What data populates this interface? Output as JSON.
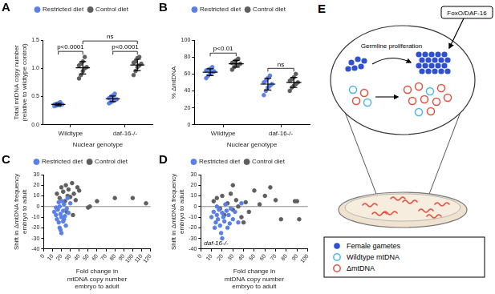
{
  "chart_data": [
    {
      "panel_label": "A",
      "type": "dot",
      "categories": [
        "Wildtype",
        "daf-16-/-"
      ],
      "xlabel": "Nuclear genotype",
      "ylabel": [
        "Total mtDNA copy number",
        "(relative to wildtype control)"
      ],
      "ylim": [
        0,
        1.5
      ],
      "yticks": [
        {
          "value": 0,
          "label": "0.0"
        },
        0.5,
        {
          "value": 1,
          "label": "1.0"
        },
        1.5
      ],
      "legend": "upper left",
      "grid": false,
      "marker": "circle",
      "series": [
        {
          "name": "Restricted diet",
          "color": "#5a7fe8",
          "values": [
            [
              0.33,
              0.34,
              0.35,
              0.35,
              0.36,
              0.36,
              0.37,
              0.38,
              0.4
            ],
            [
              0.38,
              0.4,
              0.42,
              0.45,
              0.45,
              0.47,
              0.5,
              0.52,
              0.55
            ]
          ],
          "mean": [
            0.36,
            0.46
          ],
          "sd": [
            0.02,
            0.05
          ]
        },
        {
          "name": "Control diet",
          "color": "#5f5f5f",
          "values": [
            [
              0.82,
              0.88,
              0.95,
              1.0,
              1.02,
              1.05,
              1.08,
              1.12,
              1.2
            ],
            [
              0.88,
              0.95,
              1.02,
              1.05,
              1.08,
              1.1,
              1.12,
              1.18,
              1.2
            ]
          ],
          "mean": [
            1.01,
            1.06
          ],
          "sd": [
            0.11,
            0.1
          ]
        }
      ],
      "annotations": [
        {
          "text": "p<0.0001",
          "categories": [
            "Wildtype"
          ]
        },
        {
          "text": "p<0.0001",
          "categories": [
            "daf-16-/-"
          ]
        },
        {
          "text": "ns",
          "categories": [
            "Wildtype",
            "daf-16-/-"
          ],
          "series": "Control diet"
        }
      ]
    },
    {
      "panel_label": "B",
      "type": "dot",
      "categories": [
        "Wildtype",
        "daf-16-/-"
      ],
      "xlabel": "Nuclear genotype",
      "ylabel": "% ΔmtDNA",
      "ylim": [
        0,
        100
      ],
      "yticks": [
        0,
        20,
        40,
        60,
        80,
        100
      ],
      "legend": "upper left",
      "grid": false,
      "marker": "circle",
      "series": [
        {
          "name": "Restricted diet",
          "color": "#5a7fe8",
          "values": [
            [
              55,
              58,
              60,
              62,
              63,
              64,
              65,
              66,
              68
            ],
            [
              35,
              40,
              44,
              46,
              48,
              50,
              52,
              55,
              58
            ]
          ],
          "mean": [
            62,
            48
          ],
          "sd": [
            4,
            7
          ]
        },
        {
          "name": "Control diet",
          "color": "#5f5f5f",
          "values": [
            [
              65,
              68,
              70,
              71,
              72,
              73,
              74,
              76,
              78
            ],
            [
              40,
              44,
              46,
              48,
              50,
              52,
              54,
              56,
              60
            ]
          ],
          "mean": [
            72,
            50
          ],
          "sd": [
            4,
            6
          ]
        }
      ],
      "annotations": [
        {
          "text": "p<0.01",
          "categories": [
            "Wildtype"
          ]
        },
        {
          "text": "ns",
          "categories": [
            "daf-16-/-"
          ]
        }
      ]
    },
    {
      "panel_label": "C",
      "type": "scatter",
      "xlabel": [
        "Fold change in",
        "mtDNA copy number",
        "embryo to adult"
      ],
      "ylabel": [
        "Shift in ΔmtDNA frequency",
        "embryo to adult"
      ],
      "xlim": [
        0,
        120
      ],
      "xticks": [
        0,
        10,
        20,
        30,
        40,
        50,
        60,
        70,
        80,
        90,
        100,
        110,
        120
      ],
      "ylim": [
        -40,
        30
      ],
      "yticks": [
        -40,
        -30,
        -20,
        -10,
        0,
        10,
        20,
        30
      ],
      "hline": 0,
      "legend": "upper left",
      "grid": false,
      "marker": "circle",
      "series": [
        {
          "name": "Restricted diet",
          "color": "#5a7fe8",
          "values": [
            [
              12,
              -5
            ],
            [
              14,
              -8
            ],
            [
              15,
              -12
            ],
            [
              16,
              -3
            ],
            [
              17,
              -15
            ],
            [
              18,
              -20
            ],
            [
              18,
              0
            ],
            [
              19,
              -7
            ],
            [
              20,
              -10
            ],
            [
              20,
              -25
            ],
            [
              21,
              5
            ],
            [
              22,
              -4
            ],
            [
              22,
              -14
            ],
            [
              23,
              2
            ],
            [
              24,
              -9
            ],
            [
              25,
              -18
            ],
            [
              26,
              -2
            ],
            [
              27,
              8
            ],
            [
              28,
              -6
            ],
            [
              30,
              3
            ],
            [
              14,
              -1
            ],
            [
              19,
              -22
            ],
            [
              23,
              -12
            ],
            [
              17,
              4
            ]
          ]
        },
        {
          "name": "Control diet",
          "color": "#5f5f5f",
          "values": [
            [
              15,
              12
            ],
            [
              18,
              8
            ],
            [
              20,
              18
            ],
            [
              22,
              14
            ],
            [
              24,
              5
            ],
            [
              25,
              20
            ],
            [
              27,
              10
            ],
            [
              28,
              16
            ],
            [
              30,
              9
            ],
            [
              32,
              22
            ],
            [
              34,
              12
            ],
            [
              36,
              6
            ],
            [
              38,
              18
            ],
            [
              40,
              15
            ],
            [
              50,
              -1
            ],
            [
              52,
              0
            ],
            [
              60,
              5
            ],
            [
              80,
              8
            ],
            [
              100,
              8
            ],
            [
              115,
              3
            ],
            [
              26,
              -5
            ],
            [
              33,
              -8
            ]
          ]
        }
      ]
    },
    {
      "panel_label": "D",
      "type": "scatter",
      "xlabel": [
        "Fold change in",
        "mtDNA copy number",
        "embryo to adult"
      ],
      "ylabel": [
        "Shift in ΔmtDNA frequency",
        "embryo to adult"
      ],
      "xlim": [
        0,
        100
      ],
      "xticks": [
        0,
        10,
        20,
        30,
        40,
        50,
        60,
        70,
        80,
        90,
        100
      ],
      "ylim": [
        -40,
        30
      ],
      "yticks": [
        -40,
        -30,
        -20,
        -10,
        0,
        10,
        20,
        30
      ],
      "hline": 0,
      "legend": "upper left",
      "grid": false,
      "marker": "circle",
      "annotations": [
        {
          "text": "daf-16-/-"
        }
      ],
      "series": [
        {
          "name": "Restricted diet",
          "color": "#5a7fe8",
          "values": [
            [
              10,
              -10
            ],
            [
              12,
              -5
            ],
            [
              13,
              -20
            ],
            [
              14,
              -15
            ],
            [
              15,
              -8
            ],
            [
              16,
              -12
            ],
            [
              17,
              -3
            ],
            [
              18,
              -18
            ],
            [
              19,
              -25
            ],
            [
              20,
              -6
            ],
            [
              21,
              -10
            ],
            [
              22,
              -14
            ],
            [
              23,
              2
            ],
            [
              24,
              -4
            ],
            [
              25,
              -20
            ],
            [
              26,
              -8
            ],
            [
              28,
              -2
            ],
            [
              30,
              -12
            ],
            [
              32,
              -5
            ],
            [
              35,
              -15
            ],
            [
              38,
              3
            ],
            [
              15,
              0
            ],
            [
              20,
              -30
            ],
            [
              27,
              -16
            ]
          ]
        },
        {
          "name": "Control diet",
          "color": "#5f5f5f",
          "values": [
            [
              12,
              5
            ],
            [
              15,
              8
            ],
            [
              18,
              -2
            ],
            [
              20,
              10
            ],
            [
              22,
              -8
            ],
            [
              25,
              3
            ],
            [
              28,
              12
            ],
            [
              30,
              -3
            ],
            [
              33,
              6
            ],
            [
              35,
              0
            ],
            [
              38,
              -10
            ],
            [
              42,
              4
            ],
            [
              45,
              -5
            ],
            [
              50,
              15
            ],
            [
              55,
              2
            ],
            [
              60,
              10
            ],
            [
              65,
              18
            ],
            [
              70,
              6
            ],
            [
              75,
              -12
            ],
            [
              88,
              5
            ],
            [
              90,
              5
            ],
            [
              92,
              -12
            ],
            [
              40,
              -15
            ],
            [
              30,
              20
            ]
          ]
        }
      ]
    }
  ],
  "diagram": {
    "panel_label": "E",
    "process": "Germline proliferation",
    "regulator": "FoxO/DAF-16",
    "legend": [
      {
        "label": "Female gametes",
        "color": "#2f50d0",
        "marker": "filled"
      },
      {
        "label": "Wildtype mtDNA",
        "color": "#49b6e8",
        "marker": "ring"
      },
      {
        "label": "ΔmtDNA",
        "color": "#e4503f",
        "marker": "ring"
      }
    ]
  }
}
